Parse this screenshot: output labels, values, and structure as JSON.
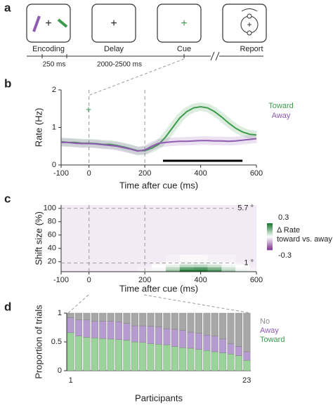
{
  "schematic": {
    "label": "a",
    "stages": [
      {
        "name": "Encoding",
        "duration": "250 ms"
      },
      {
        "name": "Delay",
        "duration": "2000-2500 ms"
      },
      {
        "name": "Cue"
      },
      {
        "name": "Report"
      }
    ]
  },
  "chart_data": [
    {
      "type": "line",
      "label": "b",
      "xlabel": "Time after cue (ms)",
      "ylabel": "Rate (Hz)",
      "x": [
        -100,
        -75,
        -50,
        -25,
        0,
        25,
        50,
        75,
        100,
        125,
        150,
        175,
        200,
        225,
        250,
        275,
        300,
        325,
        350,
        375,
        400,
        425,
        450,
        475,
        500,
        525,
        550,
        575,
        600
      ],
      "series": [
        {
          "name": "Toward",
          "color": "#3d9b4c",
          "values": [
            0.62,
            0.6,
            0.6,
            0.58,
            0.58,
            0.57,
            0.55,
            0.55,
            0.52,
            0.48,
            0.43,
            0.38,
            0.38,
            0.45,
            0.55,
            0.75,
            1.0,
            1.25,
            1.42,
            1.52,
            1.55,
            1.52,
            1.42,
            1.28,
            1.12,
            0.98,
            0.88,
            0.82,
            0.8
          ]
        },
        {
          "name": "Away",
          "color": "#8e5bb0",
          "values": [
            0.6,
            0.6,
            0.58,
            0.57,
            0.57,
            0.56,
            0.54,
            0.52,
            0.5,
            0.46,
            0.42,
            0.37,
            0.4,
            0.5,
            0.58,
            0.6,
            0.62,
            0.63,
            0.63,
            0.64,
            0.65,
            0.65,
            0.64,
            0.64,
            0.63,
            0.64,
            0.66,
            0.68,
            0.7
          ]
        }
      ],
      "xlim": [
        -100,
        600
      ],
      "xticks": [
        -100,
        0,
        200,
        400,
        600
      ],
      "ylim": [
        0,
        2
      ],
      "yticks": [
        0,
        1,
        2
      ],
      "vlines": [
        0,
        200
      ],
      "significance": [
        265,
        550
      ]
    },
    {
      "type": "heatmap",
      "label": "c",
      "xlabel": "Time after cue (ms)",
      "ylabel": "Shift size (%)",
      "x": [
        -100,
        -50,
        0,
        50,
        100,
        150,
        200,
        250,
        300,
        350,
        400,
        450,
        500,
        550,
        600
      ],
      "y": [
        6,
        10,
        14,
        18,
        22,
        40,
        60,
        80,
        100
      ],
      "z": [
        [
          -0.03,
          -0.03,
          -0.03,
          -0.03,
          -0.03,
          -0.03,
          -0.02,
          0.02,
          0.15,
          0.3,
          0.3,
          0.25,
          0.12,
          0.03,
          -0.02
        ],
        [
          -0.03,
          -0.03,
          -0.03,
          -0.03,
          -0.03,
          -0.03,
          -0.02,
          0.01,
          0.08,
          0.2,
          0.22,
          0.16,
          0.06,
          0.01,
          -0.02
        ],
        [
          -0.03,
          -0.03,
          -0.03,
          -0.03,
          -0.03,
          -0.03,
          -0.03,
          0,
          0.03,
          0.08,
          0.09,
          0.06,
          0.02,
          0,
          -0.03
        ],
        [
          -0.03,
          -0.03,
          -0.03,
          -0.03,
          -0.03,
          -0.03,
          -0.03,
          -0.02,
          0,
          0.02,
          0.02,
          0.01,
          0,
          -0.02,
          -0.03
        ],
        [
          -0.03,
          -0.03,
          -0.03,
          -0.03,
          -0.03,
          -0.03,
          -0.03,
          -0.03,
          -0.02,
          -0.01,
          -0.01,
          -0.02,
          -0.02,
          -0.03,
          -0.03
        ],
        [
          -0.03,
          -0.03,
          -0.03,
          -0.03,
          -0.03,
          -0.03,
          -0.03,
          -0.03,
          -0.03,
          -0.03,
          -0.03,
          -0.03,
          -0.03,
          -0.03,
          -0.03
        ],
        [
          -0.03,
          -0.03,
          -0.03,
          -0.03,
          -0.03,
          -0.03,
          -0.03,
          -0.03,
          -0.03,
          -0.03,
          -0.03,
          -0.03,
          -0.03,
          -0.03,
          -0.03
        ],
        [
          -0.03,
          -0.03,
          -0.03,
          -0.03,
          -0.03,
          -0.03,
          -0.03,
          -0.03,
          -0.03,
          -0.03,
          -0.03,
          -0.03,
          -0.03,
          -0.03,
          -0.03
        ],
        [
          -0.03,
          -0.03,
          -0.03,
          -0.03,
          -0.03,
          -0.03,
          -0.03,
          -0.03,
          -0.03,
          -0.03,
          -0.03,
          -0.03,
          -0.03,
          -0.03,
          -0.03
        ]
      ],
      "xlim": [
        -100,
        600
      ],
      "xticks": [
        -100,
        0,
        200,
        400,
        600
      ],
      "ylim": [
        5,
        105
      ],
      "yticks": [
        20,
        40,
        60,
        80,
        100
      ],
      "vlines": [
        0,
        200
      ],
      "annotations": [
        {
          "y": 100,
          "text": "5.7 °"
        },
        {
          "y": 18,
          "text": "1 °"
        }
      ],
      "colorbar": {
        "title": [
          "Δ Rate",
          "toward vs. away"
        ],
        "zlim": [
          -0.3,
          0.3
        ],
        "ticks": [
          0.3,
          -0.3
        ],
        "low_color": "#7b2d8e",
        "high_color": "#17752e"
      }
    },
    {
      "type": "stacked_bar",
      "label": "d",
      "xlabel": "Participants",
      "ylabel": "Proportion of trials",
      "categories": [
        "1",
        null,
        null,
        null,
        null,
        null,
        null,
        null,
        null,
        null,
        null,
        null,
        null,
        null,
        null,
        null,
        null,
        null,
        null,
        null,
        null,
        null,
        "23"
      ],
      "series": [
        {
          "name": "Toward",
          "color": "#9bd49a",
          "values": [
            0.66,
            0.6,
            0.58,
            0.57,
            0.56,
            0.55,
            0.54,
            0.53,
            0.5,
            0.49,
            0.47,
            0.46,
            0.45,
            0.42,
            0.4,
            0.39,
            0.37,
            0.35,
            0.33,
            0.31,
            0.29,
            0.26,
            0.18
          ]
        },
        {
          "name": "Away",
          "color": "#b69bd0",
          "values": [
            0.26,
            0.28,
            0.3,
            0.29,
            0.3,
            0.31,
            0.31,
            0.29,
            0.28,
            0.29,
            0.3,
            0.3,
            0.28,
            0.3,
            0.3,
            0.28,
            0.28,
            0.27,
            0.27,
            0.24,
            0.18,
            0.16,
            0.15
          ]
        },
        {
          "name": "No",
          "color": "#a7a7a7",
          "values": [
            0.08,
            0.12,
            0.12,
            0.14,
            0.14,
            0.14,
            0.15,
            0.18,
            0.22,
            0.22,
            0.23,
            0.24,
            0.27,
            0.28,
            0.3,
            0.33,
            0.35,
            0.38,
            0.4,
            0.45,
            0.53,
            0.58,
            0.67
          ]
        }
      ],
      "ylim": [
        0,
        1
      ],
      "yticks": [
        0,
        0.5,
        1
      ],
      "legend_colors": {
        "No": "#8c8c8c",
        "Away": "#8e5bb0",
        "Toward": "#3d9b4c"
      }
    }
  ]
}
